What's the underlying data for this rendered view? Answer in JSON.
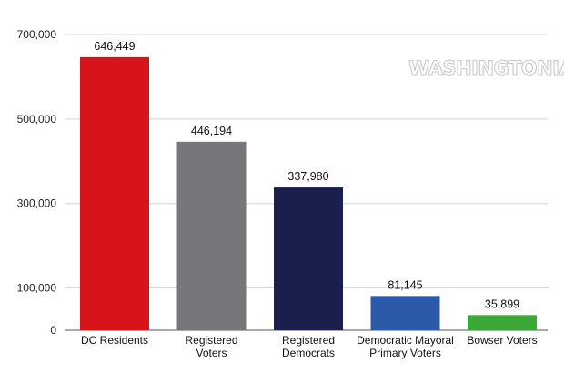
{
  "chart_data": {
    "type": "bar",
    "categories": [
      "DC Residents",
      "Registered Voters",
      "Registered Democrats",
      "Democratic Mayoral Primary Voters",
      "Bowser Voters"
    ],
    "category_lines": [
      [
        "DC Residents"
      ],
      [
        "Registered",
        "Voters"
      ],
      [
        "Registered",
        "Democrats"
      ],
      [
        "Democratic Mayoral",
        "Primary Voters"
      ],
      [
        "Bowser Voters"
      ]
    ],
    "values": [
      646449,
      446194,
      337980,
      81145,
      35899
    ],
    "value_labels": [
      "646,449",
      "446,194",
      "337,980",
      "81,145",
      "35,899"
    ],
    "colors": [
      "#d7141a",
      "#77777b",
      "#1a1f4d",
      "#2d5aa8",
      "#3da83a"
    ],
    "ylim": [
      0,
      700000
    ],
    "yticks": [
      {
        "value": 0,
        "label": "0"
      },
      {
        "value": 100000,
        "label": "100,000"
      },
      {
        "value": 300000,
        "label": "300,000"
      },
      {
        "value": 500000,
        "label": "500,000"
      },
      {
        "value": 700000,
        "label": "700,000"
      }
    ],
    "grid": true,
    "title": "",
    "xlabel": "",
    "ylabel": ""
  },
  "watermark": "WASHINGTONIAN",
  "colors": {
    "gridline": "#d3d3d3",
    "baseline": "#555555"
  }
}
